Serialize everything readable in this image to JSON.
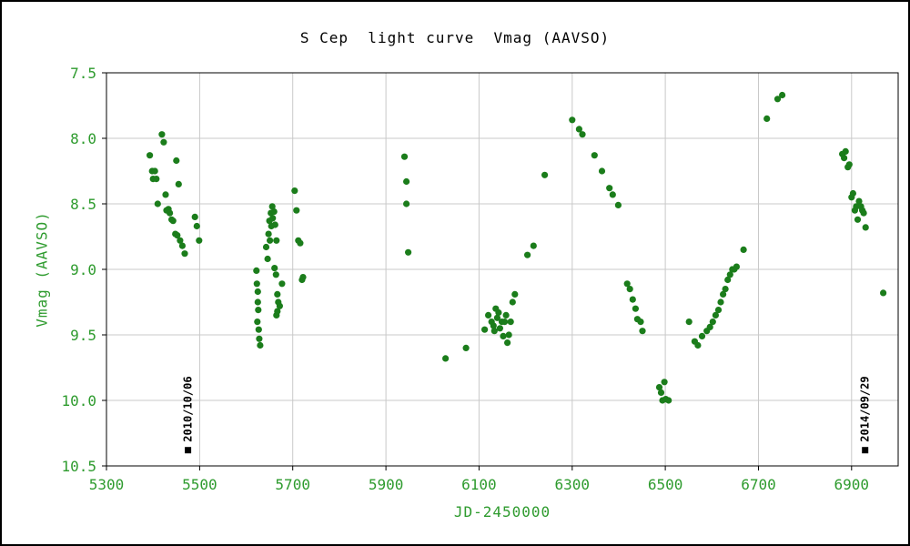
{
  "chart_data": {
    "type": "scatter",
    "title": "S Cep  light curve  Vmag (AAVSO)",
    "xlabel": "JD-2450000",
    "ylabel": "Vmag (AAVSO)",
    "xlim": [
      5300,
      7000
    ],
    "ylim": [
      7.5,
      10.5
    ],
    "y_axis_inverted": true,
    "grid": true,
    "legend": "none",
    "xticks": [
      5300,
      5500,
      5700,
      5900,
      6100,
      6300,
      6500,
      6700,
      6900
    ],
    "yticks": [
      7.5,
      8.0,
      8.5,
      9.0,
      9.5,
      10.0,
      10.5
    ],
    "colors": {
      "point": "#1b7d1b",
      "tick_label": "#2e9b2e",
      "axis_label": "#2e9b2e",
      "title": "#000000",
      "grid": "#c9c9c9",
      "axis": "#000000",
      "annotation": "#000000",
      "background": "#ffffff"
    },
    "points": [
      [
        5393,
        8.13
      ],
      [
        5398,
        8.25
      ],
      [
        5400,
        8.31
      ],
      [
        5404,
        8.25
      ],
      [
        5407,
        8.31
      ],
      [
        5410,
        8.5
      ],
      [
        5419,
        7.97
      ],
      [
        5423,
        8.03
      ],
      [
        5427,
        8.43
      ],
      [
        5429,
        8.55
      ],
      [
        5433,
        8.54
      ],
      [
        5436,
        8.57
      ],
      [
        5440,
        8.62
      ],
      [
        5443,
        8.63
      ],
      [
        5448,
        8.73
      ],
      [
        5450,
        8.17
      ],
      [
        5452,
        8.74
      ],
      [
        5455,
        8.35
      ],
      [
        5458,
        8.78
      ],
      [
        5463,
        8.82
      ],
      [
        5468,
        8.88
      ],
      [
        5490,
        8.6
      ],
      [
        5494,
        8.67
      ],
      [
        5499,
        8.78
      ],
      [
        5622,
        9.01
      ],
      [
        5623,
        9.11
      ],
      [
        5624,
        9.4
      ],
      [
        5625,
        9.17
      ],
      [
        5625,
        9.25
      ],
      [
        5626,
        9.31
      ],
      [
        5627,
        9.46
      ],
      [
        5628,
        9.53
      ],
      [
        5630,
        9.58
      ],
      [
        5643,
        8.83
      ],
      [
        5646,
        8.92
      ],
      [
        5648,
        8.73
      ],
      [
        5650,
        8.63
      ],
      [
        5651,
        8.78
      ],
      [
        5653,
        8.57
      ],
      [
        5654,
        8.67
      ],
      [
        5656,
        8.52
      ],
      [
        5657,
        8.61
      ],
      [
        5660,
        8.56
      ],
      [
        5661,
        8.99
      ],
      [
        5662,
        8.66
      ],
      [
        5664,
        9.04
      ],
      [
        5665,
        8.78
      ],
      [
        5665,
        9.35
      ],
      [
        5667,
        9.19
      ],
      [
        5667,
        9.32
      ],
      [
        5669,
        9.25
      ],
      [
        5672,
        9.28
      ],
      [
        5677,
        9.11
      ],
      [
        5704,
        8.4
      ],
      [
        5708,
        8.55
      ],
      [
        5712,
        8.78
      ],
      [
        5716,
        8.8
      ],
      [
        5720,
        9.08
      ],
      [
        5722,
        9.06
      ],
      [
        5940,
        8.14
      ],
      [
        5944,
        8.33
      ],
      [
        5944,
        8.5
      ],
      [
        5948,
        8.87
      ],
      [
        6028,
        9.68
      ],
      [
        6072,
        9.6
      ],
      [
        6112,
        9.46
      ],
      [
        6120,
        9.35
      ],
      [
        6127,
        9.4
      ],
      [
        6131,
        9.43
      ],
      [
        6133,
        9.47
      ],
      [
        6136,
        9.3
      ],
      [
        6139,
        9.37
      ],
      [
        6142,
        9.33
      ],
      [
        6145,
        9.45
      ],
      [
        6149,
        9.4
      ],
      [
        6152,
        9.51
      ],
      [
        6155,
        9.4
      ],
      [
        6158,
        9.35
      ],
      [
        6161,
        9.56
      ],
      [
        6164,
        9.5
      ],
      [
        6168,
        9.4
      ],
      [
        6172,
        9.25
      ],
      [
        6177,
        9.19
      ],
      [
        6204,
        8.89
      ],
      [
        6217,
        8.82
      ],
      [
        6241,
        8.28
      ],
      [
        6300,
        7.86
      ],
      [
        6315,
        7.93
      ],
      [
        6322,
        7.97
      ],
      [
        6348,
        8.13
      ],
      [
        6364,
        8.25
      ],
      [
        6380,
        8.38
      ],
      [
        6387,
        8.43
      ],
      [
        6399,
        8.51
      ],
      [
        6418,
        9.11
      ],
      [
        6424,
        9.15
      ],
      [
        6430,
        9.23
      ],
      [
        6436,
        9.3
      ],
      [
        6440,
        9.38
      ],
      [
        6447,
        9.4
      ],
      [
        6451,
        9.47
      ],
      [
        6487,
        9.9
      ],
      [
        6491,
        9.94
      ],
      [
        6494,
        10.0
      ],
      [
        6498,
        9.86
      ],
      [
        6501,
        9.99
      ],
      [
        6507,
        10.0
      ],
      [
        6551,
        9.4
      ],
      [
        6563,
        9.55
      ],
      [
        6570,
        9.58
      ],
      [
        6579,
        9.51
      ],
      [
        6589,
        9.47
      ],
      [
        6596,
        9.44
      ],
      [
        6602,
        9.4
      ],
      [
        6608,
        9.35
      ],
      [
        6614,
        9.31
      ],
      [
        6619,
        9.25
      ],
      [
        6624,
        9.19
      ],
      [
        6629,
        9.15
      ],
      [
        6634,
        9.08
      ],
      [
        6639,
        9.04
      ],
      [
        6644,
        9.0
      ],
      [
        6648,
        9.0
      ],
      [
        6653,
        8.98
      ],
      [
        6668,
        8.85
      ],
      [
        6718,
        7.85
      ],
      [
        6741,
        7.7
      ],
      [
        6751,
        7.67
      ],
      [
        6880,
        8.12
      ],
      [
        6884,
        8.15
      ],
      [
        6887,
        8.1
      ],
      [
        6892,
        8.22
      ],
      [
        6895,
        8.2
      ],
      [
        6900,
        8.45
      ],
      [
        6903,
        8.42
      ],
      [
        6907,
        8.55
      ],
      [
        6910,
        8.52
      ],
      [
        6913,
        8.62
      ],
      [
        6916,
        8.48
      ],
      [
        6920,
        8.52
      ],
      [
        6923,
        8.55
      ],
      [
        6926,
        8.57
      ],
      [
        6930,
        8.68
      ],
      [
        6968,
        9.18
      ]
    ],
    "annotations": [
      {
        "x": 5475,
        "y": 10.38,
        "label": "2010/10/06",
        "marker": "black-square"
      },
      {
        "x": 6929,
        "y": 10.38,
        "label": "2014/09/29",
        "marker": "black-square"
      }
    ]
  }
}
